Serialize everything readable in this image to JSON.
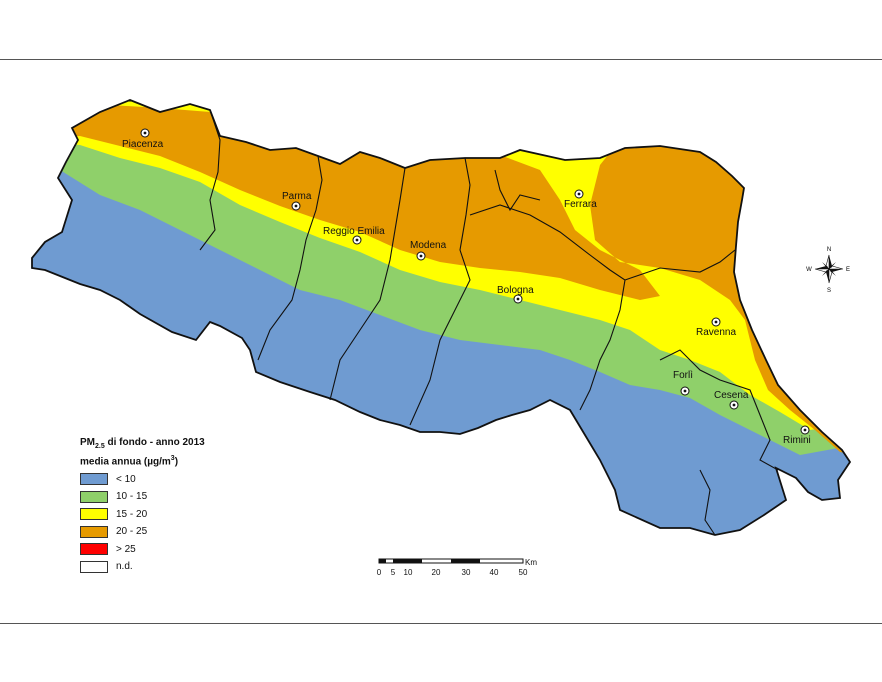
{
  "map": {
    "colors": {
      "lt10": "#6f9bd1",
      "c10_15": "#8fd06a",
      "c15_20": "#ffff00",
      "c20_25": "#e69a00",
      "gt25": "#ff0000",
      "nd": "#ffffff"
    },
    "cities": [
      {
        "name": "Piacenza"
      },
      {
        "name": "Parma"
      },
      {
        "name": "Reggio Emilia"
      },
      {
        "name": "Modena"
      },
      {
        "name": "Ferrara"
      },
      {
        "name": "Bologna"
      },
      {
        "name": "Ravenna"
      },
      {
        "name": "Forlì"
      },
      {
        "name": "Cesena"
      },
      {
        "name": "Rimini"
      }
    ]
  },
  "legend": {
    "title_prefix": "PM",
    "title_sub": "2.5",
    "title_suffix": " di fondo - anno 2013",
    "subtitle_prefix": "media annua (µg/m",
    "subtitle_sup": "3",
    "subtitle_suffix": ")",
    "items": [
      {
        "label": "< 10",
        "color": "#6f9bd1"
      },
      {
        "label": "10 - 15",
        "color": "#8fd06a"
      },
      {
        "label": "15 - 20",
        "color": "#ffff00"
      },
      {
        "label": "20 - 25",
        "color": "#e69a00"
      },
      {
        "label": "> 25",
        "color": "#ff0000"
      },
      {
        "label": "n.d.",
        "color": "#ffffff"
      }
    ]
  },
  "scale": {
    "unit": "Km",
    "ticks": [
      "0",
      "5",
      "10",
      "20",
      "30",
      "40",
      "50"
    ]
  },
  "compass": {
    "n": "N",
    "s": "S",
    "e": "E",
    "w": "W"
  }
}
